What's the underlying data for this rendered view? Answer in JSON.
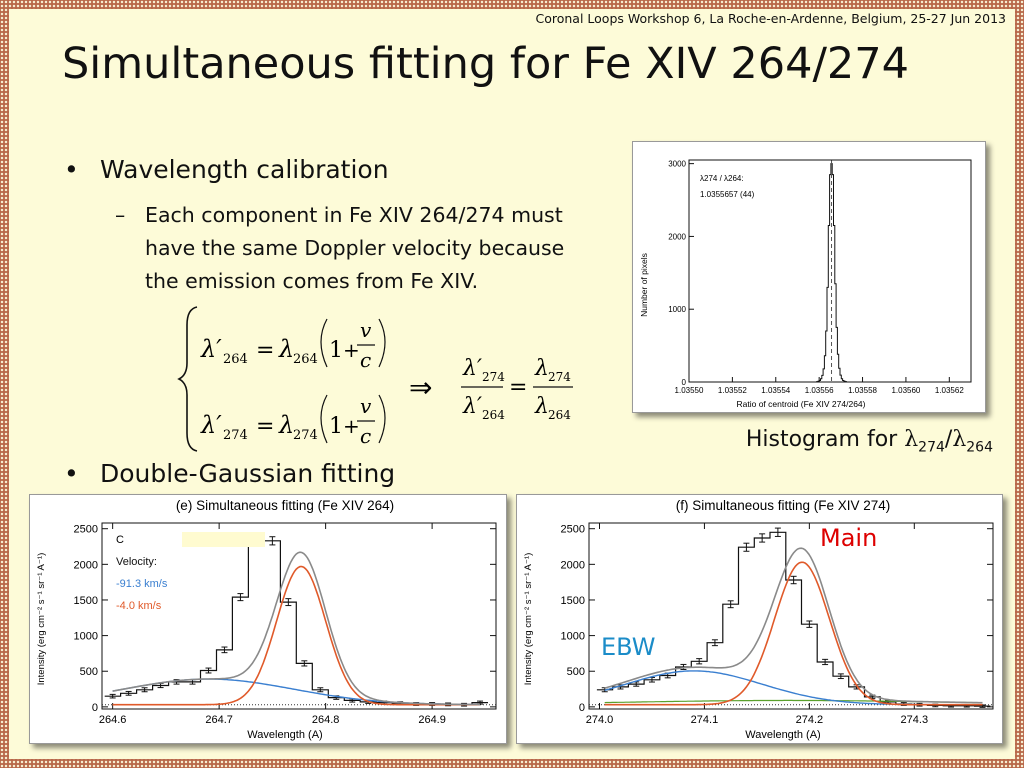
{
  "header": {
    "conference": "Coronal Loops Workshop 6, La Roche-en-Ardenne, Belgium, 25-27 Jun 2013",
    "title": "Simultaneous fitting for Fe XIV 264/274"
  },
  "bullets": {
    "b1": "Wavelength calibration",
    "b1_dot": "•",
    "sub1_dash": "–",
    "sub1_lines": [
      "Each component in Fe XIV 264/274 must",
      "have the same Doppler velocity because",
      "the emission comes from Fe XIV."
    ],
    "b2": "Double-Gaussian fitting",
    "b2_dot": "•"
  },
  "equations": {
    "implies": "⇒",
    "eq1": {
      "lhs": "λ′",
      "lhs_sub": "264",
      "eq": "=",
      "rhs": "λ",
      "rhs_sub": "264",
      "one": "1",
      "plus": "+",
      "num": "v",
      "den": "c"
    },
    "eq2": {
      "lhs": "λ′",
      "lhs_sub": "274",
      "eq": "=",
      "rhs": "λ",
      "rhs_sub": "274",
      "one": "1",
      "plus": "+",
      "num": "v",
      "den": "c"
    },
    "eq3": {
      "num_l": "λ′",
      "num_l_sub": "274",
      "den_l": "λ′",
      "den_l_sub": "264",
      "eq": "=",
      "num_r": "λ",
      "num_r_sub": "274",
      "den_r": "λ",
      "den_r_sub": "264"
    }
  },
  "histogram_caption": {
    "prefix": "Histogram for ",
    "sym1": "λ",
    "sub1": "274",
    "slash": "/",
    "sym2": "λ",
    "sub2": "264"
  },
  "annotations": {
    "main": "Main",
    "ebw": "EBW"
  },
  "colors": {
    "blue": "#3a7fd0",
    "orange": "#e05a2a",
    "gray": "#8a8a8a",
    "red_label": "#dd0000",
    "ebw_label": "#1b8cc8"
  },
  "chart_data": [
    {
      "type": "bar",
      "annotations": [
        "λ274 / λ264:",
        "1.0355657 (44)"
      ],
      "xlabel": "Ratio of centroid (Fe XIV 274/264)",
      "ylabel": "Number of pixels",
      "xlim": [
        1.0355,
        1.03563
      ],
      "ylim": [
        0,
        3050
      ],
      "xticks": [
        "1.03550",
        "1.03552",
        "1.03554",
        "1.03556",
        "1.03558",
        "1.03560",
        "1.03562"
      ],
      "xtick_values": [
        1.0355,
        1.03552,
        1.03554,
        1.03556,
        1.03558,
        1.0356,
        1.03562
      ],
      "yticks": [
        "0",
        "1000",
        "2000",
        "3000"
      ],
      "ytick_values": [
        0,
        1000,
        2000,
        3000
      ],
      "mean": 1.0355657,
      "counts": [
        5,
        10,
        20,
        45,
        90,
        180,
        360,
        700,
        1300,
        2150,
        2850,
        3000,
        2850,
        2150,
        1350,
        750,
        380,
        190,
        95,
        45,
        20,
        10,
        5
      ],
      "bin_width": 6e-07
    },
    {
      "type": "line",
      "title": "(e) Simultaneous fitting (Fe XIV 264)",
      "xlabel": "Wavelength (A)",
      "ylabel": "Intensity (erg cm⁻² s⁻¹ sr⁻¹ A⁻¹)",
      "xlim": [
        264.59,
        264.96
      ],
      "ylim": [
        -30,
        2580
      ],
      "xticks": [
        "264.6",
        "264.7",
        "264.8",
        "264.9"
      ],
      "xtick_values": [
        264.6,
        264.7,
        264.8,
        264.9
      ],
      "yticks": [
        "0",
        "500",
        "1000",
        "1500",
        "2000",
        "2500"
      ],
      "ytick_values": [
        0,
        500,
        1000,
        1500,
        2000,
        2500
      ],
      "legend": {
        "first": "C",
        "heading": "Velocity:",
        "v1": "-91.3 km/s",
        "v2": "-4.0 km/s"
      },
      "observed": {
        "x": [
          264.6,
          264.615,
          264.63,
          264.645,
          264.66,
          264.675,
          264.69,
          264.705,
          264.72,
          264.735,
          264.75,
          264.765,
          264.78,
          264.795,
          264.81,
          264.825,
          264.84,
          264.855,
          264.87,
          264.885,
          264.9,
          264.915,
          264.93,
          264.945
        ],
        "y": [
          150,
          190,
          240,
          300,
          350,
          350,
          510,
          800,
          1540,
          2330,
          2330,
          1470,
          610,
          240,
          130,
          90,
          70,
          60,
          50,
          40,
          40,
          35,
          30,
          60
        ]
      },
      "blue_component": {
        "amp": 360,
        "center": 264.69,
        "sigma": 0.08
      },
      "orange_component": {
        "amp": 1940,
        "center": 264.777,
        "sigma": 0.023
      },
      "baseline": 30
    },
    {
      "type": "line",
      "title": "(f) Simultaneous fitting (Fe XIV 274)",
      "xlabel": "Wavelength (A)",
      "ylabel": "Intensity (erg cm⁻² s⁻¹ sr⁻¹ A⁻¹)",
      "xlim": [
        273.99,
        274.375
      ],
      "ylim": [
        -30,
        2580
      ],
      "xticks": [
        "274.0",
        "274.1",
        "274.2",
        "274.3"
      ],
      "xtick_values": [
        274.0,
        274.1,
        274.2,
        274.3
      ],
      "yticks": [
        "0",
        "500",
        "1000",
        "1500",
        "2000",
        "2500"
      ],
      "ytick_values": [
        0,
        500,
        1000,
        1500,
        2000,
        2500
      ],
      "observed": {
        "x": [
          274.005,
          274.02,
          274.035,
          274.05,
          274.065,
          274.08,
          274.095,
          274.11,
          274.125,
          274.14,
          274.155,
          274.17,
          274.185,
          274.2,
          274.215,
          274.23,
          274.245,
          274.26,
          274.275,
          274.29,
          274.305,
          274.32,
          274.335,
          274.35,
          274.365
        ],
        "y": [
          240,
          280,
          320,
          380,
          440,
          560,
          640,
          900,
          1440,
          2240,
          2370,
          2450,
          1780,
          1160,
          630,
          430,
          280,
          140,
          70,
          40,
          30,
          20,
          15,
          15,
          10
        ]
      },
      "blue_component": {
        "amp": 475,
        "center": 274.09,
        "sigma": 0.065
      },
      "orange_component": {
        "amp": 2000,
        "center": 274.193,
        "sigma": 0.026
      },
      "green_component": {
        "amp": 60,
        "center": 274.18,
        "sigma": 0.15
      },
      "baseline": 30
    }
  ]
}
